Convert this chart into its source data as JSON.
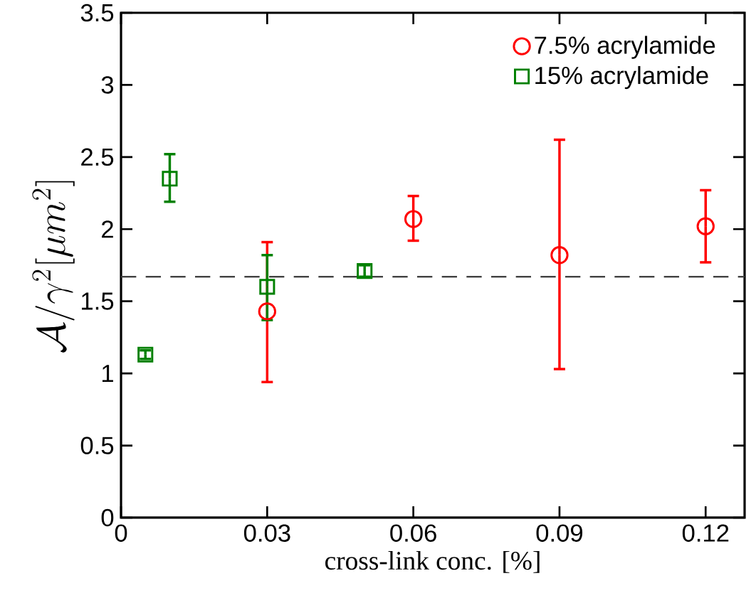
{
  "chart_data": {
    "type": "scatter",
    "xlabel": "cross-link conc. [%]",
    "ylabel": "\\mathcal{A}/\\gamma^2[\\mu m^2]",
    "series": [
      {
        "name": "7.5% acrylamide",
        "color": "#ff0000",
        "marker": "circle",
        "x": [
          0.03,
          0.06,
          0.09,
          0.12
        ],
        "values": [
          1.43,
          2.07,
          1.82,
          2.02
        ],
        "errors": [
          [
            0.94,
            1.91
          ],
          [
            1.92,
            2.23
          ],
          [
            1.03,
            2.62
          ],
          [
            1.77,
            2.27
          ]
        ]
      },
      {
        "name": "15% acrylamide",
        "color": "#008000",
        "marker": "square",
        "x": [
          0.005,
          0.01,
          0.03,
          0.05
        ],
        "values": [
          1.13,
          2.35,
          1.6,
          1.71
        ],
        "errors": [
          [
            1.1,
            1.16
          ],
          [
            2.19,
            2.52
          ],
          [
            1.37,
            1.82
          ],
          [
            1.67,
            1.75
          ]
        ]
      }
    ],
    "xlim": [
      0,
      0.128
    ],
    "xticks": [
      0,
      0.03,
      0.06,
      0.09,
      0.12
    ],
    "ylim": [
      0,
      3.5
    ],
    "yticks": [
      0,
      0.5,
      1,
      1.5,
      2,
      2.5,
      3,
      3.5
    ],
    "ref_lines": [
      {
        "axis": "y",
        "value": 1.67,
        "color": "#404040",
        "line_style": "dashed"
      }
    ],
    "grid": false,
    "legend": "top right"
  }
}
